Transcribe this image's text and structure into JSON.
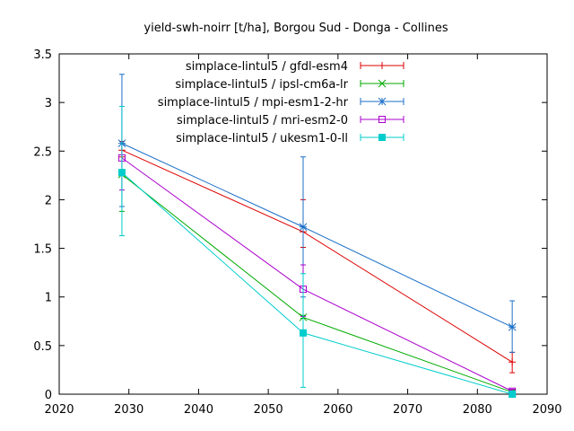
{
  "chart_data": {
    "type": "line",
    "title": "yield-swh-noirr [t/ha], Borgou Sud - Donga - Collines",
    "xlabel": "",
    "ylabel": "",
    "xlim": [
      2020,
      2090
    ],
    "ylim": [
      0,
      3.5
    ],
    "xticks": [
      2020,
      2030,
      2040,
      2050,
      2060,
      2070,
      2080,
      2090
    ],
    "yticks": [
      0,
      0.5,
      1,
      1.5,
      2,
      2.5,
      3,
      3.5
    ],
    "x": [
      2029,
      2055,
      2085
    ],
    "grid": false,
    "legend_position": "top-right",
    "series": [
      {
        "name": "simplace-lintul5 / gfdl-esm4",
        "color": "#dd0000",
        "marker": "plus",
        "values": [
          2.51,
          1.67,
          0.33
        ],
        "err_low": [
          2.44,
          1.51,
          0.22
        ],
        "err_high": [
          2.6,
          2.0,
          0.43
        ]
      },
      {
        "name": "simplace-lintul5 / ipsl-cm6a-lr",
        "color": "#00aa00",
        "marker": "cross",
        "values": [
          2.26,
          0.79,
          0.02
        ],
        "err_low": [
          1.88,
          0.78,
          0.0
        ],
        "err_high": [
          2.28,
          0.81,
          0.04
        ]
      },
      {
        "name": "simplace-lintul5 / mpi-esm1-2-hr",
        "color": "#1b6fc7",
        "marker": "star",
        "values": [
          2.58,
          1.72,
          0.69
        ],
        "err_low": [
          1.93,
          1.0,
          0.43
        ],
        "err_high": [
          3.29,
          2.44,
          0.96
        ]
      },
      {
        "name": "simplace-lintul5 / mri-esm2-0",
        "color": "#aa00cc",
        "marker": "open-square",
        "values": [
          2.43,
          1.08,
          0.03
        ],
        "err_low": [
          2.1,
          0.8,
          0.01
        ],
        "err_high": [
          2.96,
          1.33,
          0.05
        ]
      },
      {
        "name": "simplace-lintul5 / ukesm1-0-ll",
        "color": "#00cccc",
        "marker": "filled-square",
        "values": [
          2.28,
          0.63,
          0.0
        ],
        "err_low": [
          1.63,
          0.07,
          0.0
        ],
        "err_high": [
          2.96,
          1.24,
          0.01
        ]
      }
    ]
  }
}
